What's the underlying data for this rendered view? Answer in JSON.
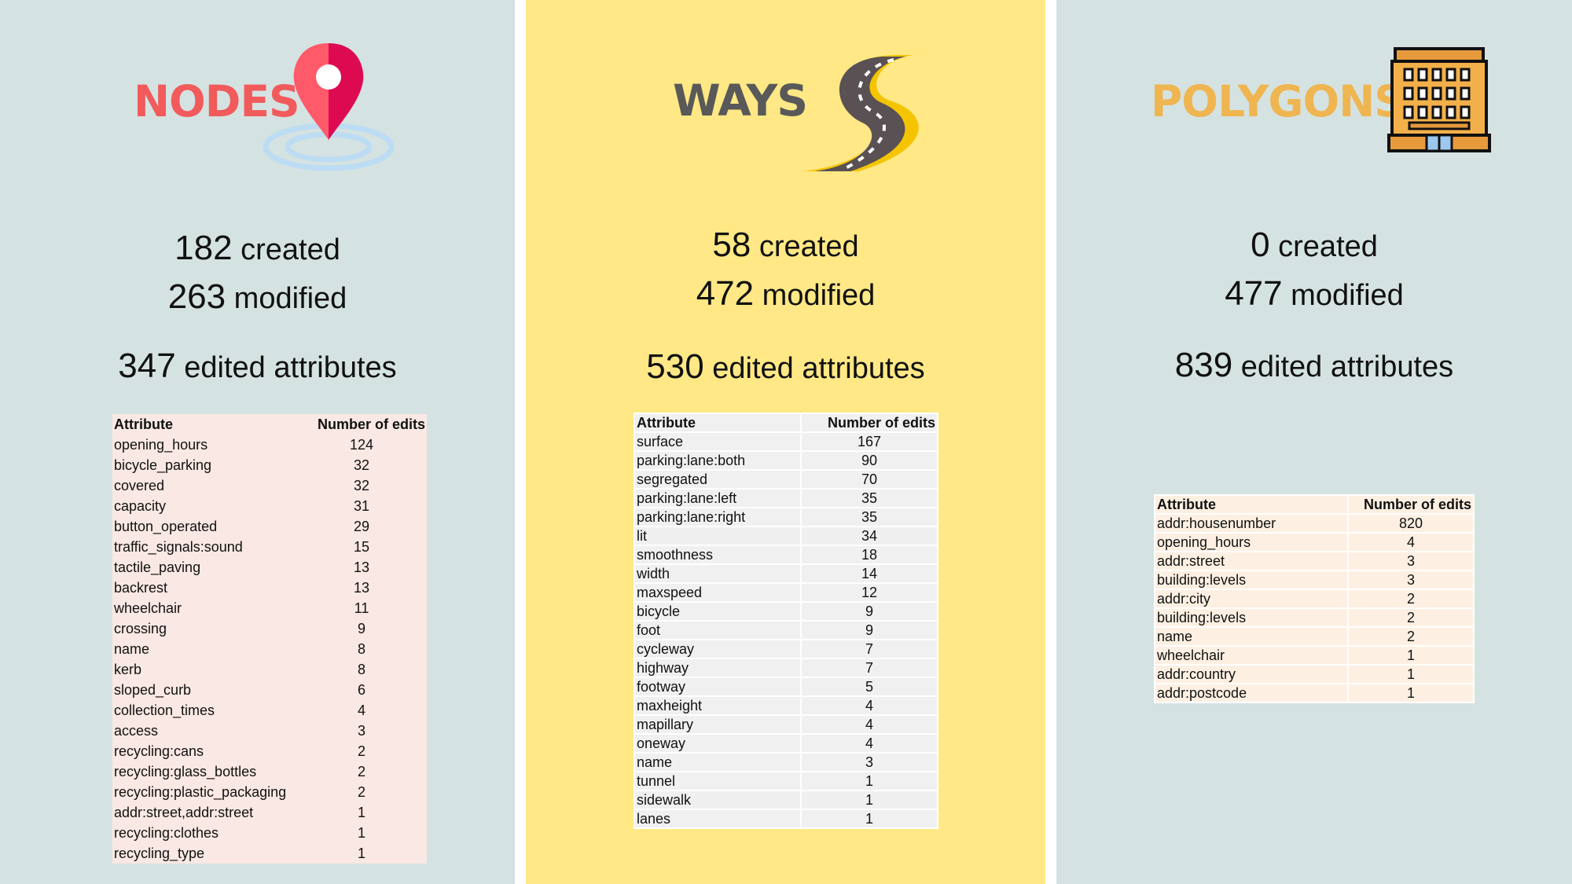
{
  "colors": {
    "nodes_title": "#f25b5b",
    "ways_title": "#595959",
    "polygons_title": "#efb551",
    "nodes_bg": "#d5e2e2",
    "ways_bg": "#ffe885",
    "polygons_bg": "#d5e2e2"
  },
  "nodes": {
    "title": "NODES",
    "icon": "map-pin-icon",
    "created_count": "182",
    "created_label": "created",
    "modified_count": "263",
    "modified_label": "modified",
    "edited_count": "347",
    "edited_label": "edited attributes",
    "table": {
      "headers": [
        "Attribute",
        "Number of edits"
      ],
      "rows": [
        [
          "opening_hours",
          "124"
        ],
        [
          "bicycle_parking",
          "32"
        ],
        [
          "covered",
          "32"
        ],
        [
          "capacity",
          "31"
        ],
        [
          "button_operated",
          "29"
        ],
        [
          "traffic_signals:sound",
          "15"
        ],
        [
          "tactile_paving",
          "13"
        ],
        [
          "backrest",
          "13"
        ],
        [
          "wheelchair",
          "11"
        ],
        [
          "crossing",
          "9"
        ],
        [
          "name",
          "8"
        ],
        [
          "kerb",
          "8"
        ],
        [
          "sloped_curb",
          "6"
        ],
        [
          "collection_times",
          "4"
        ],
        [
          "access",
          "3"
        ],
        [
          "recycling:cans",
          "2"
        ],
        [
          "recycling:glass_bottles",
          "2"
        ],
        [
          "recycling:plastic_packaging",
          "2"
        ],
        [
          "addr:street,addr:street",
          "1"
        ],
        [
          "recycling:clothes",
          "1"
        ],
        [
          "recycling_type",
          "1"
        ]
      ]
    }
  },
  "ways": {
    "title": "WAYS",
    "icon": "road-icon",
    "created_count": "58",
    "created_label": "created",
    "modified_count": "472",
    "modified_label": "modified",
    "edited_count": "530",
    "edited_label": "edited attributes",
    "table": {
      "headers": [
        "Attribute",
        "Number of edits"
      ],
      "rows": [
        [
          "surface",
          "167"
        ],
        [
          "parking:lane:both",
          "90"
        ],
        [
          "segregated",
          "70"
        ],
        [
          "parking:lane:left",
          "35"
        ],
        [
          "parking:lane:right",
          "35"
        ],
        [
          "lit",
          "34"
        ],
        [
          "smoothness",
          "18"
        ],
        [
          "width",
          "14"
        ],
        [
          "maxspeed",
          "12"
        ],
        [
          "bicycle",
          "9"
        ],
        [
          "foot",
          "9"
        ],
        [
          "cycleway",
          "7"
        ],
        [
          "highway",
          "7"
        ],
        [
          "footway",
          "5"
        ],
        [
          "maxheight",
          "4"
        ],
        [
          "mapillary",
          "4"
        ],
        [
          "oneway",
          "4"
        ],
        [
          "name",
          "3"
        ],
        [
          "tunnel",
          "1"
        ],
        [
          "sidewalk",
          "1"
        ],
        [
          "lanes",
          "1"
        ]
      ]
    }
  },
  "polygons": {
    "title": "POLYGONS",
    "icon": "building-icon",
    "created_count": "0",
    "created_label": "created",
    "modified_count": "477",
    "modified_label": "modified",
    "edited_count": "839",
    "edited_label": "edited attributes",
    "table": {
      "headers": [
        "Attribute",
        "Number of edits"
      ],
      "rows": [
        [
          "addr:housenumber",
          "820"
        ],
        [
          "opening_hours",
          "4"
        ],
        [
          "addr:street",
          "3"
        ],
        [
          "building:levels",
          "3"
        ],
        [
          "addr:city",
          "2"
        ],
        [
          "building:levels",
          "2"
        ],
        [
          "name",
          "2"
        ],
        [
          "wheelchair",
          "1"
        ],
        [
          "addr:country",
          "1"
        ],
        [
          "addr:postcode",
          "1"
        ]
      ]
    }
  }
}
